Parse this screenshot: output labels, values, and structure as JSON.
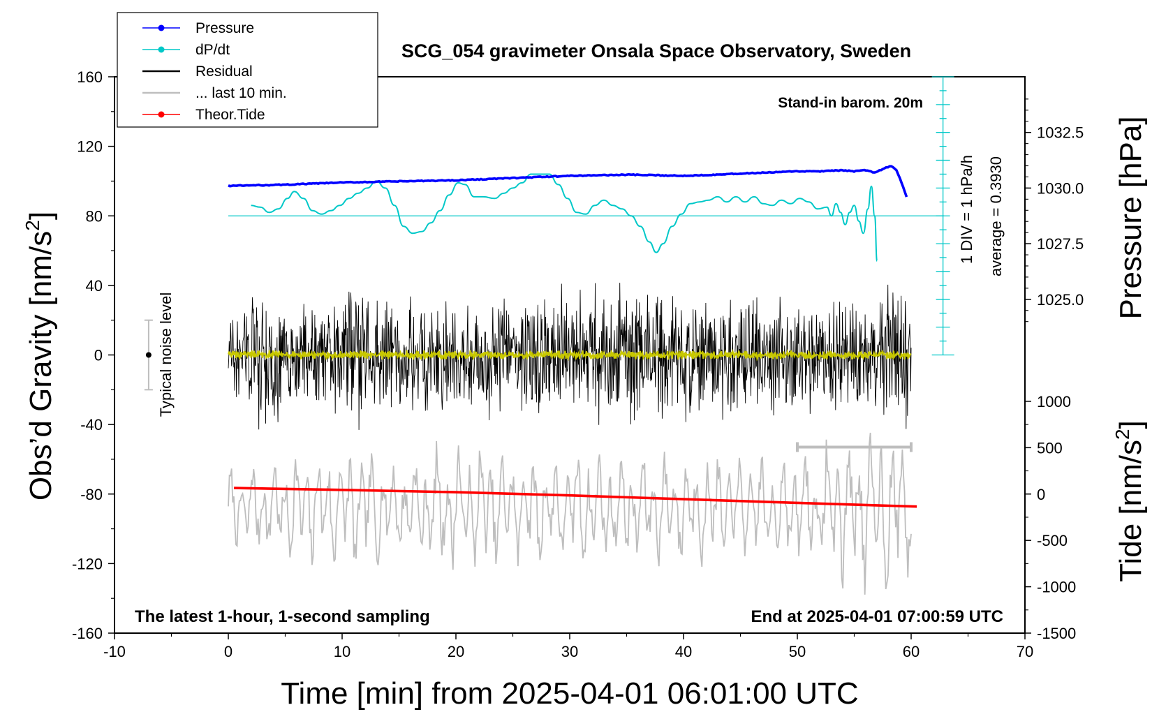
{
  "chart_data": {
    "type": "line",
    "title": "SCG_054 gravimeter Onsala Space Observatory, Sweden",
    "xlabel": "Time [min] from 2025-04-01 06:01:00 UTC",
    "ylabel_left": "Obs’d Gravity [nm/s",
    "ylabel_left_sup": "2",
    "ylabel_left_end": "]",
    "ylabel_right_top": "Pressure [hPa]",
    "ylabel_right_bottom": "Tide [nm/s",
    "ylabel_right_bottom_sup": "2",
    "ylabel_right_bottom_end": "]",
    "xlim": [
      -10,
      70
    ],
    "ylim_left": [
      -160,
      160
    ],
    "x_ticks": [
      "-10",
      "0",
      "10",
      "20",
      "30",
      "40",
      "50",
      "60",
      "70"
    ],
    "x_tick_values": [
      -10,
      0,
      10,
      20,
      30,
      40,
      50,
      60,
      70
    ],
    "y_left_ticks": [
      "160",
      "120",
      "80",
      "40",
      "0",
      "-40",
      "-80",
      "-120",
      "-160"
    ],
    "y_left_tick_values": [
      160,
      120,
      80,
      40,
      0,
      -40,
      -80,
      -120,
      -160
    ],
    "pressure_axis": {
      "ticks": [
        "1032.5",
        "1030.0",
        "1027.5",
        "1025.0"
      ],
      "tick_values": [
        1032.5,
        1030.0,
        1027.5,
        1025.0
      ],
      "gravity_at_1030": 96,
      "gravity_per_hpa": 12.8
    },
    "tide_axis": {
      "ticks": [
        "1000",
        "500",
        "0",
        "-500",
        "-1000",
        "-1500"
      ],
      "tick_values": [
        1000,
        500,
        0,
        -500,
        -1000,
        -1500
      ],
      "gravity_at_0": -80,
      "gravity_per_unit": 0.05333
    },
    "dpdt_scale": {
      "label": "1 DIV = 1 hPa/h",
      "average_label": "average = 0.3930",
      "axis_x": 62.8,
      "y_top": 160,
      "y_bottom": 0,
      "div_gravity": 16
    },
    "legend": [
      {
        "label": "Pressure",
        "color": "#0000ff",
        "marker": true
      },
      {
        "label": "dP/dt",
        "color": "#00c8c8",
        "marker": true
      },
      {
        "label": "Residual",
        "color": "#000000",
        "marker": false
      },
      {
        "label": "... last 10 min.",
        "color": "#bebebe",
        "marker": false
      },
      {
        "label": "Theor.Tide",
        "color": "#ff0000",
        "marker": true
      }
    ],
    "annotations": {
      "stand_in": "Stand-in barom. 20m",
      "latest": "The latest 1-hour, 1-second sampling",
      "end_at": "End at 2025-04-01 07:00:59 UTC",
      "noise": "Typical noise level"
    },
    "noise_bar": {
      "x": -7,
      "center": 0,
      "half_range": 20
    },
    "last10_bracket": {
      "x_start": 50,
      "x_end": 60,
      "y": -53
    },
    "series": [
      {
        "name": "Pressure",
        "color": "#0000ff",
        "unit": "hPa",
        "x": [
          0,
          5,
          10,
          15,
          20,
          25,
          30,
          35,
          40,
          45,
          50,
          52,
          54,
          55,
          56,
          56.8,
          57.5,
          58.2,
          58.7,
          59.2,
          59.6
        ],
        "values": [
          1030.1,
          1030.15,
          1030.25,
          1030.3,
          1030.35,
          1030.45,
          1030.55,
          1030.6,
          1030.55,
          1030.65,
          1030.75,
          1030.75,
          1030.8,
          1030.75,
          1030.8,
          1030.7,
          1030.85,
          1031.0,
          1030.8,
          1030.2,
          1029.6
        ]
      },
      {
        "name": "dP/dt",
        "color": "#00c8c8",
        "unit": "gravity-scale",
        "x": [
          2.0,
          2.8,
          3.6,
          4.4,
          5.2,
          5.8,
          6.6,
          7.4,
          8.2,
          9.0,
          9.8,
          10.6,
          11.4,
          12.2,
          13.0,
          13.8,
          14.6,
          15.4,
          16.2,
          17.0,
          17.8,
          18.6,
          19.4,
          20.2,
          20.8,
          21.6,
          22.4,
          23.4,
          24.2,
          25.0,
          25.8,
          26.6,
          27.4,
          28.2,
          29.0,
          29.8,
          30.6,
          31.4,
          32.2,
          33.0,
          33.8,
          34.6,
          35.4,
          36.2,
          37.0,
          37.6,
          38.2,
          39.0,
          39.8,
          40.6,
          41.4,
          42.2,
          43.0,
          43.8,
          44.6,
          45.4,
          46.2,
          47.0,
          47.8,
          48.6,
          49.4,
          50.2,
          51.0,
          51.8,
          52.6,
          53.0,
          53.4,
          53.8,
          54.2,
          54.6,
          55.0,
          55.4,
          55.8,
          56.2,
          56.5,
          56.8,
          57.0
        ],
        "values": [
          86,
          85,
          82,
          84,
          90,
          94,
          90,
          83,
          81,
          83,
          86,
          90,
          93,
          96,
          100,
          96,
          86,
          74,
          70,
          71,
          76,
          83,
          92,
          99,
          98,
          91,
          91,
          90,
          93,
          96,
          99,
          104,
          104,
          104,
          98,
          90,
          82,
          81,
          86,
          89,
          86,
          84,
          80,
          74,
          65,
          59,
          64,
          74,
          81,
          87,
          88,
          89,
          91,
          88,
          91,
          88,
          91,
          87,
          86,
          89,
          87,
          90,
          88,
          84,
          85,
          80,
          87,
          82,
          75,
          82,
          86,
          77,
          70,
          84,
          97,
          80,
          54
        ]
      },
      {
        "name": "Residual",
        "color": "#000000",
        "x_range": [
          0,
          60
        ],
        "amplitude_envelope": {
          "x": [
            0,
            1,
            2,
            3,
            5,
            7,
            8,
            10,
            11,
            13,
            15,
            16,
            20,
            25,
            27,
            30,
            35,
            40,
            45,
            50,
            55,
            57,
            60
          ],
          "values": [
            22,
            32,
            48,
            55,
            45,
            35,
            42,
            38,
            52,
            42,
            38,
            35,
            40,
            38,
            48,
            40,
            45,
            42,
            38,
            36,
            35,
            45,
            48
          ]
        }
      },
      {
        "name": "Residual smoothed",
        "color": "#c8c800",
        "x_range": [
          0,
          60
        ],
        "amplitude": 2.5
      },
      {
        "name": "... last 10 min.",
        "color": "#bebebe",
        "x_range": [
          0,
          60
        ],
        "center": -88,
        "amplitude_envelope": {
          "x": [
            0,
            5,
            10,
            15,
            20,
            25,
            30,
            35,
            40,
            45,
            50,
            55,
            60
          ],
          "values": [
            20,
            28,
            35,
            25,
            35,
            30,
            32,
            28,
            30,
            28,
            30,
            45,
            40
          ]
        }
      },
      {
        "name": "Theor.Tide",
        "color": "#ff0000",
        "unit": "nm/s2",
        "x": [
          0.5,
          10,
          20,
          30,
          40,
          50,
          60.5
        ],
        "values": [
          65,
          45,
          20,
          -15,
          -55,
          -95,
          -135
        ]
      }
    ]
  }
}
